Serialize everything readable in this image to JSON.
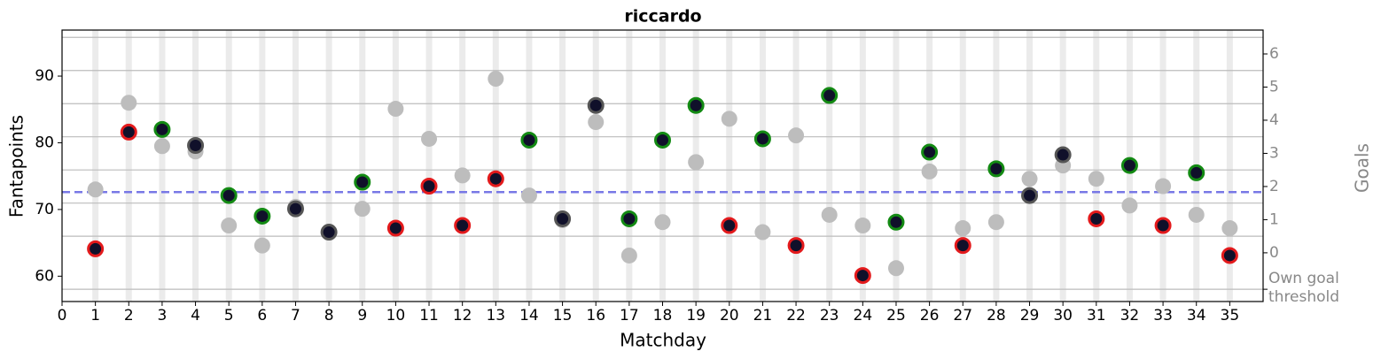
{
  "chart_data": {
    "type": "scatter",
    "title": "riccardo",
    "x_label": "Matchday",
    "y_label": "Fantapoints",
    "y2_label": "Goals",
    "x": [
      1,
      2,
      3,
      4,
      5,
      6,
      7,
      8,
      9,
      10,
      11,
      12,
      13,
      14,
      15,
      16,
      17,
      18,
      19,
      20,
      21,
      22,
      23,
      24,
      25,
      26,
      27,
      28,
      29,
      30,
      31,
      32,
      33,
      34,
      35
    ],
    "xlim": [
      0,
      36
    ],
    "xticks": [
      0,
      1,
      2,
      3,
      4,
      5,
      6,
      7,
      8,
      9,
      10,
      11,
      12,
      13,
      14,
      15,
      16,
      17,
      18,
      19,
      20,
      21,
      22,
      23,
      24,
      25,
      26,
      27,
      28,
      29,
      30,
      31,
      32,
      33,
      34,
      35
    ],
    "ylim": [
      56.2,
      96.9
    ],
    "yticks": [
      60,
      70,
      80,
      90
    ],
    "y2lim": [
      -1.47,
      6.72
    ],
    "y2ticks": [
      0,
      1,
      2,
      3,
      4,
      5,
      6,
      {
        "value": -1.1,
        "label": "Own goal\nthreshold"
      }
    ],
    "y2_grid": [
      -1.1,
      0.5,
      1.5,
      2.5,
      3.5,
      4.5,
      5.5,
      6.5
    ],
    "y2_color": "#888888",
    "band_color": "#ebebeb",
    "mean_line": {
      "value": 72.6,
      "color": "#7878e6"
    },
    "series": [
      {
        "color": "#bdbdbd",
        "values": [
          73.0,
          86.0,
          79.5,
          78.7,
          67.6,
          64.6,
          70.4,
          66.6,
          70.1,
          85.1,
          80.6,
          75.1,
          89.6,
          72.1,
          68.4,
          83.1,
          63.1,
          68.1,
          77.1,
          83.6,
          66.6,
          81.1,
          69.2,
          67.6,
          61.2,
          75.7,
          67.2,
          68.1,
          74.6,
          76.6,
          74.6,
          70.6,
          73.5,
          69.2,
          67.2
        ]
      },
      {
        "color": "#10102a",
        "edge_colors": [
          "#e31a1c",
          "#e31a1c",
          "#138a13",
          "#555555",
          "#138a13",
          "#138a13",
          "#555555",
          "#555555",
          "#138a13",
          "#e31a1c",
          "#e31a1c",
          "#e31a1c",
          "#e31a1c",
          "#138a13",
          "#555555",
          "#555555",
          "#138a13",
          "#138a13",
          "#138a13",
          "#e31a1c",
          "#138a13",
          "#e31a1c",
          "#138a13",
          "#e31a1c",
          "#138a13",
          "#138a13",
          "#e31a1c",
          "#138a13",
          "#555555",
          "#555555",
          "#e31a1c",
          "#138a13",
          "#e31a1c",
          "#138a13",
          "#e31a1c"
        ],
        "values": [
          64.1,
          81.6,
          82.0,
          79.6,
          72.1,
          69.0,
          70.1,
          66.6,
          74.1,
          67.2,
          73.5,
          67.6,
          74.6,
          80.4,
          68.6,
          85.6,
          68.6,
          80.4,
          85.6,
          67.6,
          80.6,
          64.6,
          87.1,
          60.1,
          68.1,
          78.6,
          64.6,
          76.1,
          72.1,
          78.2,
          68.6,
          76.6,
          67.6,
          75.5,
          63.1
        ]
      }
    ]
  }
}
